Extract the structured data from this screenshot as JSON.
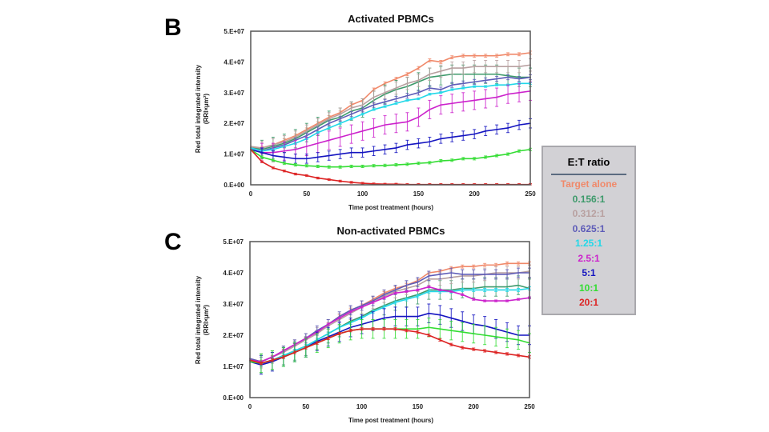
{
  "legend": {
    "title": "E:T ratio",
    "items": [
      {
        "label": "Target alone",
        "color": "#f0896a"
      },
      {
        "label": "0.156:1",
        "color": "#3d9a6b"
      },
      {
        "label": "0.312:1",
        "color": "#b8a0a0"
      },
      {
        "label": "0.625:1",
        "color": "#5e5cb8"
      },
      {
        "label": "1.25:1",
        "color": "#22d8e8"
      },
      {
        "label": "2.5:1",
        "color": "#cc22cc"
      },
      {
        "label": "5:1",
        "color": "#1414c0"
      },
      {
        "label": "10:1",
        "color": "#33dd33"
      },
      {
        "label": "20:1",
        "color": "#dd2222"
      }
    ]
  },
  "chart_data": [
    {
      "panel": "B",
      "type": "line",
      "title": "Activated PBMCs",
      "xlabel": "Time post treatment (hours)",
      "ylabel": [
        "Red total integrated intensity",
        "(RRI×µm²)"
      ],
      "xlim": [
        0,
        250
      ],
      "ylim": [
        0,
        50000000
      ],
      "xticks": [
        0,
        50,
        100,
        150,
        200,
        250
      ],
      "xtick_labels": [
        "0",
        "50",
        "100",
        "150",
        "200",
        "250"
      ],
      "yticks": [
        0,
        10000000,
        20000000,
        30000000,
        40000000,
        50000000
      ],
      "ytick_labels": [
        "0.E+00",
        "1.E+07",
        "2.E+07",
        "3.E+07",
        "4.E+07",
        "5.E+07"
      ],
      "grid": false,
      "error_bars": true,
      "y_scale_unit": 10000000,
      "x": [
        0,
        10,
        20,
        30,
        40,
        50,
        60,
        70,
        80,
        90,
        100,
        110,
        120,
        130,
        140,
        150,
        160,
        170,
        180,
        190,
        200,
        210,
        220,
        230,
        240,
        250
      ],
      "series": [
        {
          "name": "Target alone",
          "values": [
            1.2,
            1.2,
            1.3,
            1.45,
            1.6,
            1.8,
            2.0,
            2.2,
            2.35,
            2.6,
            2.75,
            3.1,
            3.3,
            3.45,
            3.6,
            3.8,
            4.05,
            4.0,
            4.15,
            4.2,
            4.2,
            4.2,
            4.2,
            4.25,
            4.25,
            4.3
          ],
          "err": 0.05
        },
        {
          "name": "0.156:1",
          "values": [
            1.2,
            1.15,
            1.25,
            1.35,
            1.5,
            1.7,
            1.9,
            2.1,
            2.2,
            2.4,
            2.5,
            2.75,
            2.95,
            3.1,
            3.2,
            3.35,
            3.5,
            3.55,
            3.6,
            3.6,
            3.6,
            3.6,
            3.6,
            3.55,
            3.5,
            3.5
          ],
          "err": 0.3
        },
        {
          "name": "0.312:1",
          "values": [
            1.25,
            1.2,
            1.3,
            1.4,
            1.55,
            1.75,
            1.95,
            2.15,
            2.3,
            2.5,
            2.6,
            2.85,
            3.0,
            3.15,
            3.3,
            3.4,
            3.6,
            3.7,
            3.8,
            3.8,
            3.85,
            3.85,
            3.85,
            3.85,
            3.85,
            3.9
          ],
          "err": 0.2
        },
        {
          "name": "0.625:1",
          "values": [
            1.2,
            1.1,
            1.2,
            1.3,
            1.45,
            1.6,
            1.8,
            2.0,
            2.15,
            2.3,
            2.45,
            2.6,
            2.7,
            2.8,
            2.9,
            3.0,
            3.15,
            3.1,
            3.25,
            3.3,
            3.35,
            3.4,
            3.45,
            3.5,
            3.45,
            3.5
          ],
          "err": 0.08
        },
        {
          "name": "1.25:1",
          "values": [
            1.2,
            1.1,
            1.15,
            1.25,
            1.35,
            1.5,
            1.7,
            1.85,
            2.0,
            2.15,
            2.3,
            2.45,
            2.55,
            2.65,
            2.75,
            2.8,
            2.95,
            3.0,
            3.1,
            3.15,
            3.2,
            3.2,
            3.25,
            3.25,
            3.3,
            3.3
          ],
          "err": 0.03
        },
        {
          "name": "2.5:1",
          "values": [
            1.15,
            1.05,
            1.05,
            1.1,
            1.15,
            1.25,
            1.35,
            1.45,
            1.55,
            1.65,
            1.75,
            1.85,
            1.95,
            2.0,
            2.05,
            2.2,
            2.45,
            2.6,
            2.65,
            2.7,
            2.75,
            2.8,
            2.85,
            2.95,
            3.0,
            3.05
          ],
          "err": 0.3
        },
        {
          "name": "5:1",
          "values": [
            1.15,
            1.05,
            0.95,
            0.9,
            0.85,
            0.85,
            0.9,
            0.95,
            1.0,
            1.05,
            1.05,
            1.1,
            1.15,
            1.2,
            1.3,
            1.35,
            1.4,
            1.5,
            1.55,
            1.6,
            1.65,
            1.75,
            1.8,
            1.85,
            1.95,
            2.0
          ],
          "err": 0.15
        },
        {
          "name": "10:1",
          "values": [
            1.15,
            0.9,
            0.8,
            0.7,
            0.65,
            0.62,
            0.6,
            0.58,
            0.58,
            0.6,
            0.6,
            0.62,
            0.63,
            0.65,
            0.67,
            0.7,
            0.72,
            0.78,
            0.8,
            0.85,
            0.85,
            0.9,
            0.95,
            1.0,
            1.1,
            1.15
          ],
          "err": 0.04
        },
        {
          "name": "20:1",
          "values": [
            1.15,
            0.75,
            0.55,
            0.45,
            0.35,
            0.3,
            0.22,
            0.17,
            0.12,
            0.08,
            0.05,
            0.03,
            0.02,
            0.02,
            0.01,
            0.01,
            0.01,
            0.01,
            0.01,
            0.01,
            0.01,
            0.01,
            0.01,
            0.01,
            0.01,
            0.01
          ],
          "err": 0.03
        }
      ]
    },
    {
      "panel": "C",
      "type": "line",
      "title": "Non-activated PBMCs",
      "xlabel": "Time post treatment (hours)",
      "ylabel": [
        "Red total integrated intensity",
        "(RRI×µm²)"
      ],
      "xlim": [
        0,
        250
      ],
      "ylim": [
        0,
        50000000
      ],
      "xticks": [
        0,
        50,
        100,
        150,
        200,
        250
      ],
      "xtick_labels": [
        "0",
        "50",
        "100",
        "150",
        "200",
        "250"
      ],
      "yticks": [
        0,
        10000000,
        20000000,
        30000000,
        40000000,
        50000000
      ],
      "ytick_labels": [
        "0.E+00",
        "1.E+07",
        "2.E+07",
        "3.E+07",
        "4.E+07",
        "5.E+07"
      ],
      "grid": false,
      "error_bars": true,
      "y_scale_unit": 10000000,
      "x": [
        0,
        10,
        20,
        30,
        40,
        50,
        60,
        70,
        80,
        90,
        100,
        110,
        120,
        130,
        140,
        150,
        160,
        170,
        180,
        190,
        200,
        210,
        220,
        230,
        240,
        250
      ],
      "series": [
        {
          "name": "Target alone",
          "values": [
            1.25,
            1.15,
            1.3,
            1.5,
            1.7,
            1.9,
            2.1,
            2.35,
            2.6,
            2.8,
            2.95,
            3.15,
            3.35,
            3.5,
            3.6,
            3.75,
            4.0,
            4.05,
            4.15,
            4.2,
            4.2,
            4.25,
            4.25,
            4.3,
            4.3,
            4.3
          ],
          "err": 0.05
        },
        {
          "name": "0.156:1",
          "values": [
            1.2,
            1.1,
            1.2,
            1.35,
            1.5,
            1.65,
            1.85,
            2.05,
            2.25,
            2.45,
            2.6,
            2.8,
            2.95,
            3.1,
            3.2,
            3.3,
            3.45,
            3.45,
            3.45,
            3.5,
            3.5,
            3.55,
            3.55,
            3.55,
            3.6,
            3.5
          ],
          "err": 0.3
        },
        {
          "name": "0.312:1",
          "values": [
            1.25,
            1.15,
            1.3,
            1.45,
            1.65,
            1.85,
            2.05,
            2.3,
            2.5,
            2.7,
            2.9,
            3.05,
            3.25,
            3.4,
            3.5,
            3.6,
            3.8,
            3.8,
            3.85,
            3.9,
            3.9,
            3.95,
            4.0,
            4.0,
            4.0,
            4.05
          ],
          "err": 0.2
        },
        {
          "name": "0.625:1",
          "values": [
            1.25,
            1.15,
            1.3,
            1.5,
            1.7,
            1.9,
            2.15,
            2.35,
            2.6,
            2.8,
            2.95,
            3.1,
            3.3,
            3.45,
            3.6,
            3.7,
            3.9,
            3.95,
            4.0,
            3.95,
            3.95,
            3.95,
            3.95,
            3.95,
            4.0,
            4.0
          ],
          "err": 0.15
        },
        {
          "name": "1.25:1",
          "values": [
            1.2,
            1.1,
            1.2,
            1.35,
            1.5,
            1.65,
            1.85,
            2.05,
            2.25,
            2.4,
            2.55,
            2.75,
            2.9,
            3.05,
            3.15,
            3.25,
            3.4,
            3.4,
            3.4,
            3.45,
            3.45,
            3.45,
            3.45,
            3.45,
            3.45,
            3.5
          ],
          "err": 0.05
        },
        {
          "name": "2.5:1",
          "values": [
            1.2,
            1.15,
            1.3,
            1.5,
            1.7,
            1.9,
            2.1,
            2.35,
            2.55,
            2.75,
            2.9,
            3.05,
            3.2,
            3.35,
            3.4,
            3.45,
            3.55,
            3.45,
            3.4,
            3.3,
            3.15,
            3.1,
            3.1,
            3.1,
            3.15,
            3.2
          ],
          "err": 0.03
        },
        {
          "name": "5:1",
          "values": [
            1.15,
            1.05,
            1.15,
            1.3,
            1.45,
            1.6,
            1.8,
            1.95,
            2.1,
            2.25,
            2.35,
            2.45,
            2.55,
            2.6,
            2.6,
            2.6,
            2.7,
            2.65,
            2.55,
            2.45,
            2.35,
            2.3,
            2.2,
            2.1,
            2.0,
            2.0
          ],
          "err": 0.3
        },
        {
          "name": "10:1",
          "values": [
            1.15,
            1.1,
            1.2,
            1.3,
            1.45,
            1.6,
            1.75,
            1.9,
            2.05,
            2.15,
            2.2,
            2.2,
            2.2,
            2.2,
            2.2,
            2.2,
            2.25,
            2.2,
            2.15,
            2.1,
            2.05,
            2.0,
            1.95,
            1.9,
            1.85,
            1.75
          ],
          "err": 0.3
        },
        {
          "name": "20:1",
          "values": [
            1.2,
            1.1,
            1.2,
            1.3,
            1.45,
            1.6,
            1.75,
            1.9,
            2.05,
            2.15,
            2.2,
            2.2,
            2.2,
            2.2,
            2.15,
            2.1,
            2.0,
            1.85,
            1.7,
            1.6,
            1.55,
            1.5,
            1.45,
            1.4,
            1.35,
            1.3
          ],
          "err": 0.04
        }
      ]
    }
  ]
}
